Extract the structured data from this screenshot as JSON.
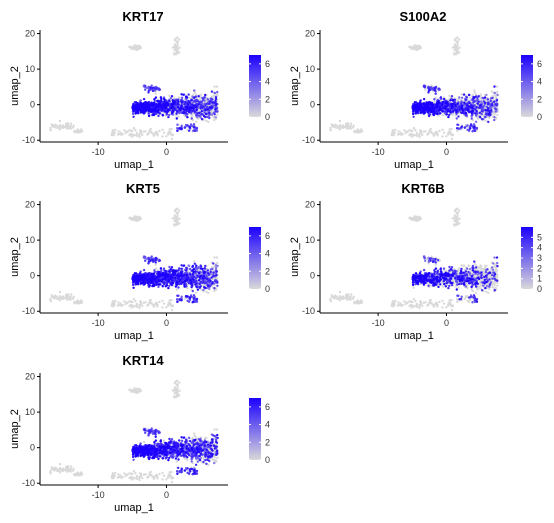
{
  "colors": {
    "low": "#d9d9d9",
    "high": "#1c00ff"
  },
  "chart_data": [
    {
      "type": "scatter",
      "title": "KRT17",
      "xlabel": "umap_1",
      "ylabel": "umap_2",
      "xlim": [
        -18.5,
        9
      ],
      "ylim": [
        -10.5,
        21
      ],
      "xticks": [
        -10,
        0
      ],
      "yticks": [
        -10,
        0,
        10,
        20
      ],
      "legend": {
        "ticks": [
          0,
          2,
          4,
          6
        ],
        "max": 7,
        "placement": "right"
      },
      "expression_fraction": 0.8
    },
    {
      "type": "scatter",
      "title": "S100A2",
      "xlabel": "umap_1",
      "ylabel": "umap_2",
      "xlim": [
        -18.5,
        9
      ],
      "ylim": [
        -10.5,
        21
      ],
      "xticks": [
        -10,
        0
      ],
      "yticks": [
        -10,
        0,
        10,
        20
      ],
      "legend": {
        "ticks": [
          0,
          2,
          4,
          6
        ],
        "max": 7,
        "placement": "right"
      },
      "expression_fraction": 0.7
    },
    {
      "type": "scatter",
      "title": "KRT5",
      "xlabel": "umap_1",
      "ylabel": "umap_2",
      "xlim": [
        -18.5,
        9
      ],
      "ylim": [
        -10.5,
        21
      ],
      "xticks": [
        -10,
        0
      ],
      "yticks": [
        -10,
        0,
        10,
        20
      ],
      "legend": {
        "ticks": [
          0,
          2,
          4,
          6
        ],
        "max": 7,
        "placement": "right"
      },
      "expression_fraction": 0.85
    },
    {
      "type": "scatter",
      "title": "KRT6B",
      "xlabel": "umap_1",
      "ylabel": "umap_2",
      "xlim": [
        -18.5,
        9
      ],
      "ylim": [
        -10.5,
        21
      ],
      "xticks": [
        -10,
        0
      ],
      "yticks": [
        -10,
        0,
        10,
        20
      ],
      "legend": {
        "ticks": [
          0,
          1,
          2,
          3,
          4,
          5
        ],
        "max": 6,
        "placement": "right"
      },
      "expression_fraction": 0.45
    },
    {
      "type": "scatter",
      "title": "KRT14",
      "xlabel": "umap_1",
      "ylabel": "umap_2",
      "xlim": [
        -18.5,
        9
      ],
      "ylim": [
        -10.5,
        21
      ],
      "xticks": [
        -10,
        0
      ],
      "yticks": [
        -10,
        0,
        10,
        20
      ],
      "legend": {
        "ticks": [
          0,
          2,
          4,
          6
        ],
        "max": 7,
        "placement": "right"
      },
      "expression_fraction": 0.85
    }
  ]
}
